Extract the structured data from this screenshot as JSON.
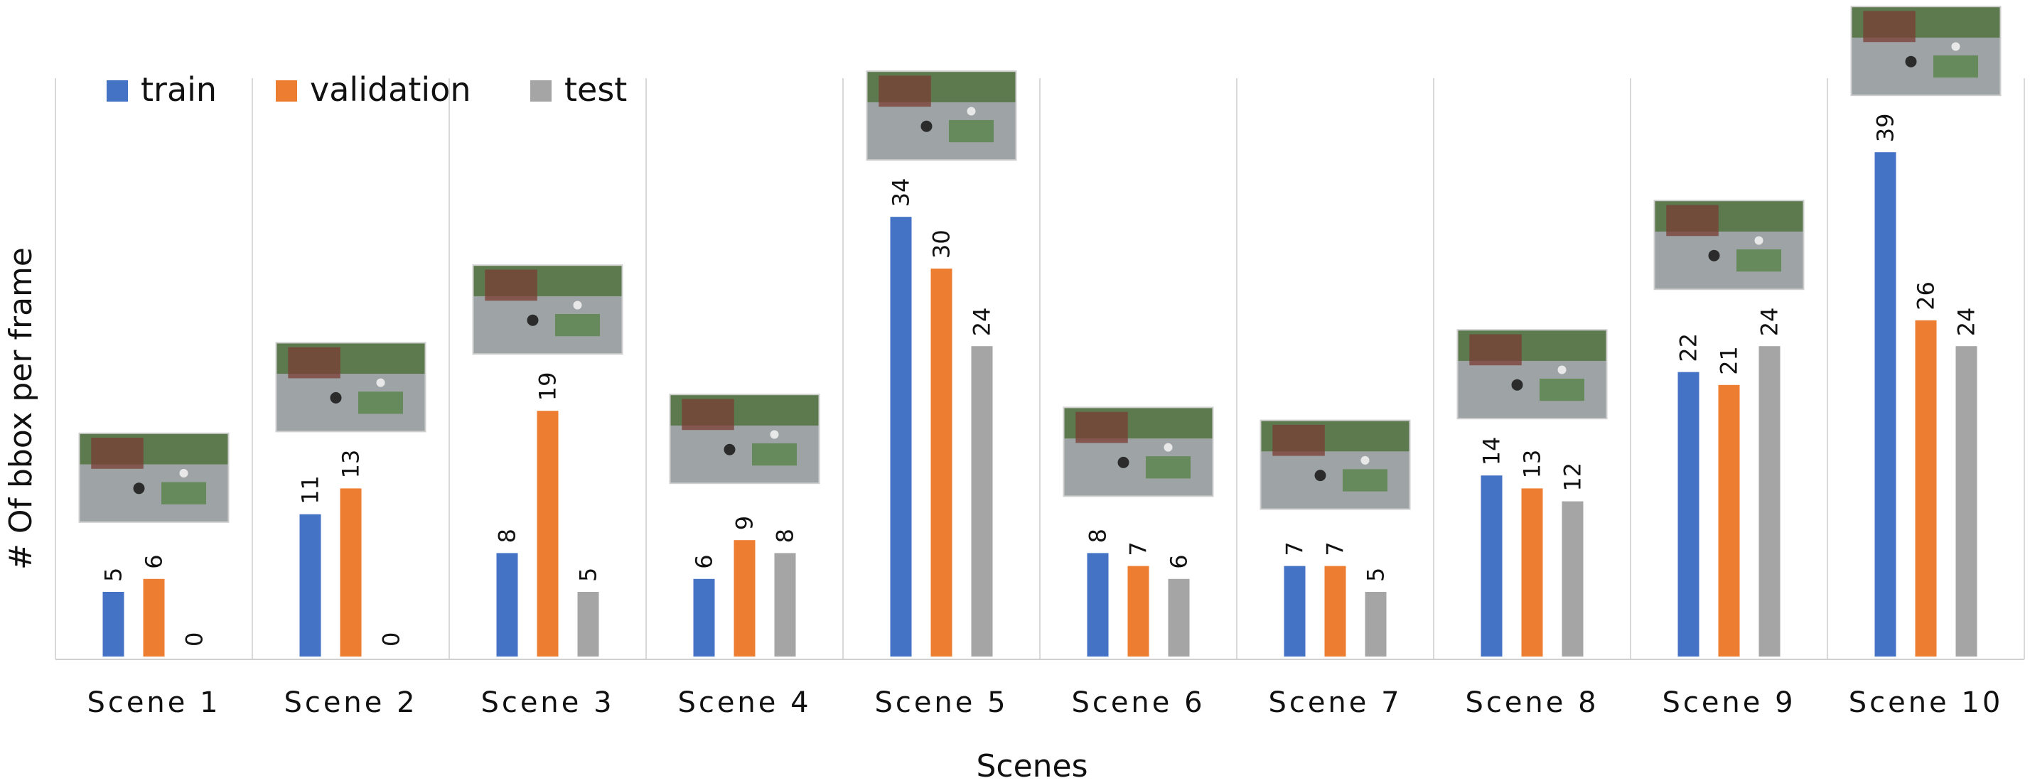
{
  "chart_data": {
    "type": "bar",
    "title": "",
    "xlabel": "Scenes",
    "ylabel": "# Of bbox per frame",
    "ylim": [
      0,
      45
    ],
    "grid": "vertical separators between categories",
    "legend_position": "top-left",
    "categories": [
      "Scene 1",
      "Scene 2",
      "Scene 3",
      "Scene 4",
      "Scene 5",
      "Scene 6",
      "Scene 7",
      "Scene 8",
      "Scene 9",
      "Scene 10"
    ],
    "series": [
      {
        "name": "train",
        "color": "#4472C4",
        "values": [
          5,
          11,
          8,
          6,
          34,
          8,
          7,
          14,
          22,
          39
        ]
      },
      {
        "name": "validation",
        "color": "#ED7D31",
        "values": [
          6,
          13,
          19,
          9,
          30,
          7,
          7,
          13,
          21,
          26
        ]
      },
      {
        "name": "test",
        "color": "#A5A5A5",
        "values": [
          0,
          0,
          5,
          8,
          24,
          6,
          5,
          12,
          24,
          24
        ]
      }
    ],
    "thumbnails": [
      "parking-lot-thumbnail",
      "building-courtyard-thumbnail",
      "parking-lot-thumbnail",
      "plaza-umbrellas-thumbnail",
      "parking-lot-thumbnail",
      "building-walkway-thumbnail",
      "lawn-street-thumbnail",
      "parking-lot-thumbnail",
      "road-traffic-thumbnail",
      "parking-lot-thumbnail"
    ]
  }
}
